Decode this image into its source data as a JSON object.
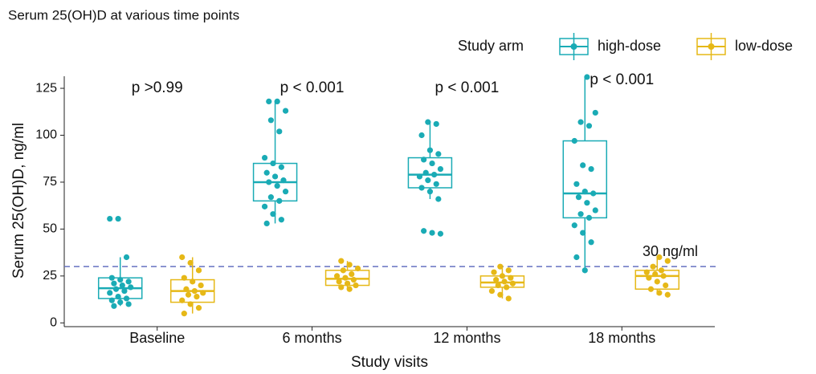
{
  "chart_data": {
    "type": "box",
    "title": "Serum 25(OH)D at various time points",
    "x_label": "Study visits",
    "y_label": "Serum 25(OH)D, ng/ml",
    "legend_title": "Study arm",
    "categories": [
      "Baseline",
      "6 months",
      "12 months",
      "18 months"
    ],
    "p_values": [
      "p >0.99",
      "p < 0.001",
      "p < 0.001",
      "p < 0.001"
    ],
    "reference_line": {
      "value": 30,
      "label": "30 ng/ml"
    },
    "ylim": [
      -2,
      134
    ],
    "yticks": [
      0,
      25,
      50,
      75,
      100,
      125
    ],
    "series": [
      {
        "name": "high-dose",
        "color": "#1aabb5",
        "stats": [
          {
            "low": 9,
            "q1": 13,
            "median": 18.5,
            "q3": 24,
            "high": 35
          },
          {
            "low": 53,
            "q1": 65,
            "median": 75,
            "q3": 85,
            "high": 118
          },
          {
            "low": 66,
            "q1": 72,
            "median": 79,
            "q3": 88,
            "high": 107
          },
          {
            "low": 28,
            "q1": 56,
            "median": 69,
            "q3": 97,
            "high": 131
          }
        ],
        "points": [
          [
            55.5,
            55.5,
            35,
            24,
            23,
            22,
            21,
            20,
            19,
            18,
            17,
            16,
            14,
            13,
            12,
            11,
            10,
            9
          ],
          [
            118,
            118,
            113,
            108,
            102,
            88,
            85,
            83,
            80,
            78,
            76,
            75,
            73,
            70,
            67,
            65,
            62,
            58,
            55,
            53
          ],
          [
            107,
            106,
            100,
            92,
            90,
            87,
            85,
            82,
            80,
            79,
            78,
            76,
            74,
            72,
            70,
            66,
            49,
            48,
            47.5
          ],
          [
            131,
            112,
            107,
            105,
            97,
            84,
            82,
            74,
            70,
            69,
            67,
            64,
            60,
            58,
            56,
            52,
            48,
            43,
            35,
            28
          ]
        ]
      },
      {
        "name": "low-dose",
        "color": "#e6b817",
        "stats": [
          {
            "low": 5,
            "q1": 11,
            "median": 17,
            "q3": 23,
            "high": 35
          },
          {
            "low": 18,
            "q1": 20,
            "median": 23.5,
            "q3": 28,
            "high": 33
          },
          {
            "low": 13,
            "q1": 19,
            "median": 21.5,
            "q3": 25,
            "high": 30
          },
          {
            "low": 15,
            "q1": 18,
            "median": 25,
            "q3": 28,
            "high": 35
          }
        ],
        "points": [
          [
            35,
            32,
            28,
            24,
            22,
            20,
            18,
            17,
            16,
            15,
            14,
            12,
            10,
            8,
            5
          ],
          [
            33,
            31,
            29,
            28,
            26,
            25,
            24,
            23,
            22,
            21,
            20,
            19,
            18
          ],
          [
            30,
            28,
            27,
            25,
            24,
            23,
            22,
            21,
            20,
            19,
            17,
            15,
            13
          ],
          [
            35,
            33,
            30,
            28,
            27,
            26,
            25,
            24,
            22,
            20,
            18,
            16,
            15
          ]
        ]
      }
    ]
  }
}
